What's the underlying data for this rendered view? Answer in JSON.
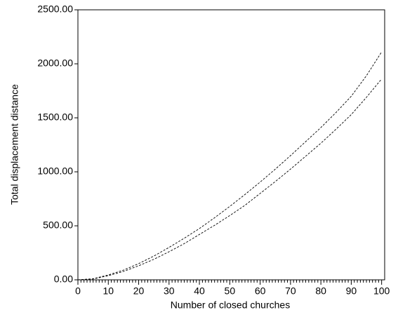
{
  "chart_data": {
    "type": "line",
    "x_label": "Number of closed churches",
    "y_label": "Total displacement distance",
    "x": [
      0,
      5,
      10,
      15,
      20,
      25,
      30,
      35,
      40,
      45,
      50,
      55,
      60,
      65,
      70,
      75,
      80,
      85,
      90,
      95,
      100
    ],
    "series": [
      {
        "color": "#000000",
        "values": [
          0,
          10,
          45,
          90,
          150,
          220,
          300,
          385,
          475,
          575,
          680,
          790,
          905,
          1025,
          1150,
          1280,
          1410,
          1550,
          1700,
          1890,
          2110
        ]
      },
      {
        "color": "#000000",
        "values": [
          0,
          8,
          38,
          78,
          130,
          190,
          260,
          335,
          420,
          505,
          595,
          690,
          800,
          910,
          1025,
          1145,
          1265,
          1395,
          1530,
          1690,
          1860
        ]
      }
    ],
    "xlim": [
      0,
      101
    ],
    "xticks": [
      0,
      10,
      20,
      30,
      40,
      50,
      60,
      70,
      80,
      90,
      100
    ],
    "ylim": [
      0,
      2500
    ],
    "yticks": [
      {
        "value": 0,
        "label": "0.00"
      },
      {
        "value": 500,
        "label": "500.00"
      },
      {
        "value": 1000,
        "label": "1000.00"
      },
      {
        "value": 1500,
        "label": "1500.00"
      },
      {
        "value": 2000,
        "label": "2000.00"
      },
      {
        "value": 2500,
        "label": "2500.00"
      }
    ],
    "line_style": "dashed",
    "grid": false
  }
}
